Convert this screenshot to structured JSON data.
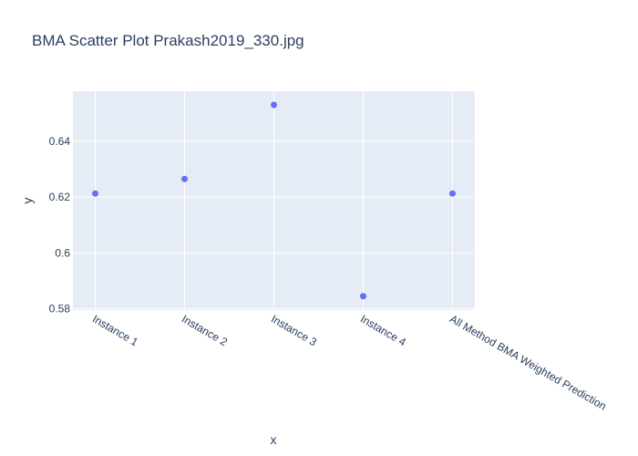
{
  "chart_data": {
    "type": "scatter",
    "title": "BMA Scatter Plot Prakash2019_330.jpg",
    "xlabel": "x",
    "ylabel": "y",
    "categories": [
      "Instance 1",
      "Instance 2",
      "Instance 3",
      "Instance 4",
      "All Method BMA Weighted Prediction"
    ],
    "values": [
      0.6213,
      0.6265,
      0.6531,
      0.5845,
      0.6213
    ],
    "ylim": [
      0.5795,
      0.658
    ],
    "yticks": [
      0.58,
      0.6,
      0.62,
      0.64
    ],
    "ytick_labels": [
      "0.58",
      "0.6",
      "0.62",
      "0.64"
    ],
    "grid": true,
    "legend": "none",
    "colors": {
      "marker": "#636efa",
      "plot_bg": "#e5ecf6",
      "grid": "#ffffff",
      "text": "#2a3f5f"
    }
  }
}
